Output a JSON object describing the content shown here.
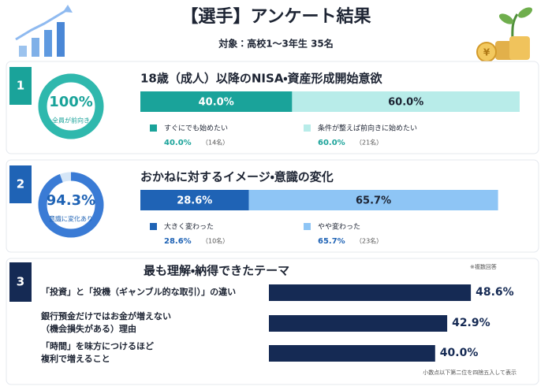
{
  "header": {
    "title": "【選手】アンケート結果",
    "subtitle": "対象：高校1〜3年生 35名"
  },
  "sections": [
    {
      "number": "1",
      "color": "#1aa39a",
      "donut": {
        "value": 100,
        "label": "100%",
        "caption": "全員が前向き",
        "color": "#2fb8ad",
        "track": "#d2f0ed"
      },
      "title": "18歳（成人）以降のNISA・資産形成開始意欲",
      "segments": [
        {
          "name": "すぐにでも始めたい",
          "value": 40.0,
          "label": "40.0%",
          "count": "（14名）",
          "color": "#1aa39a"
        },
        {
          "name": "条件が整えば前向きに始めたい",
          "value": 60.0,
          "label": "60.0%",
          "count": "（21名）",
          "color": "#b8ece9"
        }
      ]
    },
    {
      "number": "2",
      "color": "#1f63b5",
      "donut": {
        "value": 94.3,
        "label": "94.3%",
        "caption": "意識に変化あり",
        "color": "#3a7bd5",
        "track": "#d5e6f7"
      },
      "title": "おかねに対するイメージ・意識の変化",
      "segments": [
        {
          "name": "大きく変わった",
          "value": 28.6,
          "label": "28.6%",
          "count": "（10名）",
          "color": "#1f63b5"
        },
        {
          "name": "やや変わった",
          "value": 65.7,
          "label": "65.7%",
          "count": "（23名）",
          "color": "#8ec5f5"
        }
      ]
    }
  ],
  "ranking": {
    "number": "3",
    "color": "#152a54",
    "title": "最も理解・納得できたテーマ",
    "note": "※複数回答",
    "items": [
      {
        "lines": [
          "「投資」と「投機（ギャンブル的な取引）」の違い"
        ],
        "value": 48.6,
        "label": "48.6%"
      },
      {
        "lines": [
          "銀行預金だけではお金が増えない",
          "（機会損失がある）理由"
        ],
        "value": 42.9,
        "label": "42.9%"
      },
      {
        "lines": [
          "「時間」を味方につけるほど",
          "複利で増えること"
        ],
        "value": 40.0,
        "label": "40.0%"
      }
    ],
    "footnote": "小数点以下第二位を四捨五入して表示"
  }
}
